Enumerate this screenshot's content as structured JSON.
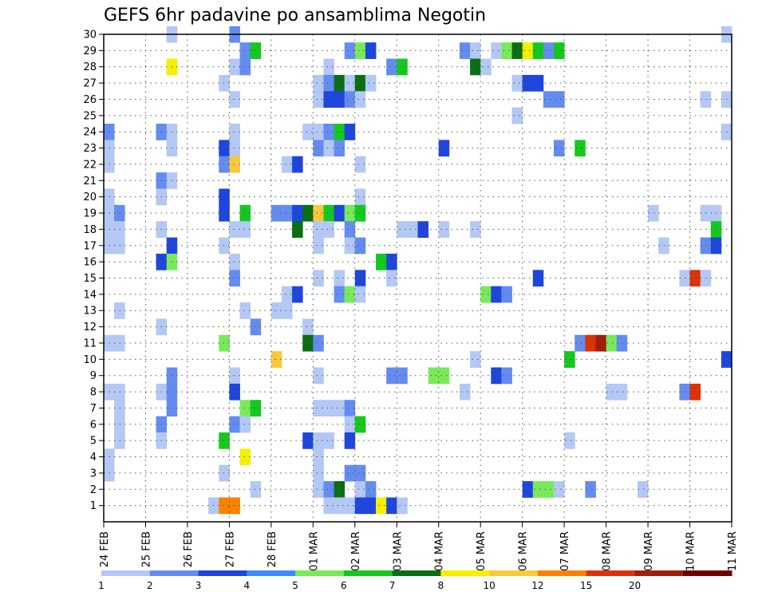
{
  "chart_data": {
    "type": "heatmap",
    "title": "GEFS 6hr padavine po ansamblima Negotin",
    "xlabel": "",
    "ylabel": "",
    "x_ticks": [
      "24 FEB",
      "25 FEB",
      "26 FEB",
      "27 FEB",
      "28 FEB",
      "01 MAR",
      "02 MAR",
      "03 MAR",
      "04 MAR",
      "05 MAR",
      "06 MAR",
      "07 MAR",
      "08 MAR",
      "09 MAR",
      "10 MAR",
      "11 MAR"
    ],
    "y_ticks": [
      1,
      2,
      3,
      4,
      5,
      6,
      7,
      8,
      9,
      10,
      11,
      12,
      13,
      14,
      15,
      16,
      17,
      18,
      19,
      20,
      21,
      22,
      23,
      24,
      25,
      26,
      27,
      28,
      29,
      30
    ],
    "x_range": [
      0,
      60
    ],
    "y_range": [
      0,
      30
    ],
    "time_steps_per_day": 4,
    "grid": true,
    "colorbar": {
      "placement": "bottom",
      "levels": [
        "1",
        "2",
        "3",
        "4",
        "5",
        "6",
        "7",
        "8",
        "10",
        "12",
        "15",
        "20"
      ],
      "colors": [
        "#b4c8f5",
        "#648cf0",
        "#1e46dc",
        "#3c8cff",
        "#78ea5a",
        "#14c81e",
        "#0a6e14",
        "#f5f000",
        "#fac83c",
        "#fa8200",
        "#dc320a",
        "#a01e0a",
        "#6e0000"
      ]
    },
    "cells": [
      [
        6,
        30,
        0
      ],
      [
        12,
        30,
        1
      ],
      [
        59,
        30,
        0
      ],
      [
        13,
        29,
        1
      ],
      [
        14,
        29,
        5
      ],
      [
        23,
        29,
        1
      ],
      [
        24,
        29,
        4
      ],
      [
        25,
        29,
        2
      ],
      [
        34,
        29,
        1
      ],
      [
        35,
        29,
        0
      ],
      [
        37,
        29,
        0
      ],
      [
        38,
        29,
        4
      ],
      [
        39,
        29,
        6
      ],
      [
        40,
        29,
        7
      ],
      [
        41,
        29,
        5
      ],
      [
        42,
        29,
        1
      ],
      [
        43,
        29,
        5
      ],
      [
        6,
        28,
        7
      ],
      [
        12,
        28,
        0
      ],
      [
        13,
        28,
        1
      ],
      [
        21,
        28,
        0
      ],
      [
        27,
        28,
        1
      ],
      [
        28,
        28,
        5
      ],
      [
        35,
        28,
        6
      ],
      [
        36,
        28,
        0
      ],
      [
        11,
        27,
        0
      ],
      [
        20,
        27,
        0
      ],
      [
        21,
        27,
        1
      ],
      [
        22,
        27,
        6
      ],
      [
        23,
        27,
        0
      ],
      [
        24,
        27,
        6
      ],
      [
        25,
        27,
        0
      ],
      [
        39,
        27,
        0
      ],
      [
        40,
        27,
        2
      ],
      [
        41,
        27,
        2
      ],
      [
        12,
        26,
        0
      ],
      [
        20,
        26,
        0
      ],
      [
        21,
        26,
        2
      ],
      [
        22,
        26,
        2
      ],
      [
        23,
        26,
        1
      ],
      [
        24,
        26,
        0
      ],
      [
        42,
        26,
        1
      ],
      [
        43,
        26,
        1
      ],
      [
        57,
        26,
        0
      ],
      [
        59,
        26,
        0
      ],
      [
        39,
        25,
        0
      ],
      [
        0,
        24,
        1
      ],
      [
        5,
        24,
        1
      ],
      [
        6,
        24,
        0
      ],
      [
        12,
        24,
        0
      ],
      [
        19,
        24,
        0
      ],
      [
        20,
        24,
        0
      ],
      [
        21,
        24,
        1
      ],
      [
        22,
        24,
        5
      ],
      [
        23,
        24,
        2
      ],
      [
        59,
        24,
        0
      ],
      [
        0,
        23,
        0
      ],
      [
        6,
        23,
        0
      ],
      [
        11,
        23,
        2
      ],
      [
        12,
        23,
        0
      ],
      [
        20,
        23,
        1
      ],
      [
        21,
        23,
        0
      ],
      [
        22,
        23,
        1
      ],
      [
        32,
        23,
        2
      ],
      [
        43,
        23,
        1
      ],
      [
        45,
        23,
        5
      ],
      [
        0,
        22,
        0
      ],
      [
        11,
        22,
        1
      ],
      [
        12,
        22,
        8
      ],
      [
        17,
        22,
        0
      ],
      [
        18,
        22,
        2
      ],
      [
        24,
        22,
        0
      ],
      [
        5,
        21,
        1
      ],
      [
        6,
        21,
        0
      ],
      [
        0,
        20,
        0
      ],
      [
        5,
        20,
        0
      ],
      [
        11,
        20,
        2
      ],
      [
        24,
        20,
        0
      ],
      [
        0,
        19,
        0
      ],
      [
        1,
        19,
        1
      ],
      [
        11,
        19,
        2
      ],
      [
        13,
        19,
        5
      ],
      [
        16,
        19,
        1
      ],
      [
        17,
        19,
        1
      ],
      [
        18,
        19,
        2
      ],
      [
        19,
        19,
        6
      ],
      [
        20,
        19,
        8
      ],
      [
        21,
        19,
        5
      ],
      [
        22,
        19,
        2
      ],
      [
        23,
        19,
        4
      ],
      [
        24,
        19,
        5
      ],
      [
        52,
        19,
        0
      ],
      [
        57,
        19,
        0
      ],
      [
        58,
        19,
        0
      ],
      [
        0,
        18,
        0
      ],
      [
        1,
        18,
        0
      ],
      [
        5,
        18,
        0
      ],
      [
        12,
        18,
        0
      ],
      [
        13,
        18,
        0
      ],
      [
        18,
        18,
        6
      ],
      [
        20,
        18,
        0
      ],
      [
        21,
        18,
        0
      ],
      [
        23,
        18,
        1
      ],
      [
        28,
        18,
        0
      ],
      [
        29,
        18,
        0
      ],
      [
        30,
        18,
        2
      ],
      [
        32,
        18,
        0
      ],
      [
        35,
        18,
        0
      ],
      [
        58,
        18,
        5
      ],
      [
        0,
        17,
        0
      ],
      [
        1,
        17,
        0
      ],
      [
        6,
        17,
        2
      ],
      [
        11,
        17,
        0
      ],
      [
        20,
        17,
        0
      ],
      [
        23,
        17,
        0
      ],
      [
        24,
        17,
        1
      ],
      [
        53,
        17,
        0
      ],
      [
        57,
        17,
        1
      ],
      [
        58,
        17,
        2
      ],
      [
        5,
        16,
        2
      ],
      [
        6,
        16,
        4
      ],
      [
        12,
        16,
        0
      ],
      [
        26,
        16,
        5
      ],
      [
        27,
        16,
        2
      ],
      [
        12,
        15,
        1
      ],
      [
        20,
        15,
        0
      ],
      [
        22,
        15,
        0
      ],
      [
        24,
        15,
        2
      ],
      [
        27,
        15,
        0
      ],
      [
        41,
        15,
        2
      ],
      [
        55,
        15,
        0
      ],
      [
        56,
        15,
        10
      ],
      [
        57,
        15,
        0
      ],
      [
        17,
        14,
        0
      ],
      [
        18,
        14,
        2
      ],
      [
        22,
        14,
        1
      ],
      [
        23,
        14,
        4
      ],
      [
        24,
        14,
        0
      ],
      [
        36,
        14,
        4
      ],
      [
        37,
        14,
        2
      ],
      [
        38,
        14,
        1
      ],
      [
        1,
        13,
        0
      ],
      [
        13,
        13,
        0
      ],
      [
        16,
        13,
        0
      ],
      [
        17,
        13,
        0
      ],
      [
        5,
        12,
        0
      ],
      [
        14,
        12,
        1
      ],
      [
        19,
        12,
        0
      ],
      [
        0,
        11,
        0
      ],
      [
        1,
        11,
        0
      ],
      [
        11,
        11,
        4
      ],
      [
        19,
        11,
        6
      ],
      [
        20,
        11,
        1
      ],
      [
        45,
        11,
        1
      ],
      [
        46,
        11,
        10
      ],
      [
        47,
        11,
        11
      ],
      [
        48,
        11,
        4
      ],
      [
        49,
        11,
        1
      ],
      [
        16,
        10,
        8
      ],
      [
        35,
        10,
        0
      ],
      [
        44,
        10,
        5
      ],
      [
        59,
        10,
        2
      ],
      [
        6,
        9,
        1
      ],
      [
        12,
        9,
        0
      ],
      [
        20,
        9,
        0
      ],
      [
        27,
        9,
        1
      ],
      [
        28,
        9,
        1
      ],
      [
        31,
        9,
        4
      ],
      [
        32,
        9,
        4
      ],
      [
        37,
        9,
        2
      ],
      [
        38,
        9,
        1
      ],
      [
        0,
        8,
        0
      ],
      [
        1,
        8,
        0
      ],
      [
        5,
        8,
        0
      ],
      [
        6,
        8,
        1
      ],
      [
        12,
        8,
        2
      ],
      [
        34,
        8,
        0
      ],
      [
        48,
        8,
        0
      ],
      [
        49,
        8,
        0
      ],
      [
        55,
        8,
        1
      ],
      [
        56,
        8,
        10
      ],
      [
        1,
        7,
        0
      ],
      [
        6,
        7,
        1
      ],
      [
        13,
        7,
        4
      ],
      [
        14,
        7,
        5
      ],
      [
        20,
        7,
        0
      ],
      [
        21,
        7,
        0
      ],
      [
        22,
        7,
        0
      ],
      [
        23,
        7,
        1
      ],
      [
        1,
        6,
        0
      ],
      [
        5,
        6,
        1
      ],
      [
        12,
        6,
        1
      ],
      [
        13,
        6,
        0
      ],
      [
        23,
        6,
        0
      ],
      [
        24,
        6,
        5
      ],
      [
        1,
        5,
        0
      ],
      [
        5,
        5,
        0
      ],
      [
        11,
        5,
        5
      ],
      [
        19,
        5,
        2
      ],
      [
        20,
        5,
        0
      ],
      [
        21,
        5,
        0
      ],
      [
        23,
        5,
        2
      ],
      [
        44,
        5,
        0
      ],
      [
        0,
        4,
        0
      ],
      [
        13,
        4,
        7
      ],
      [
        20,
        4,
        0
      ],
      [
        0,
        3,
        0
      ],
      [
        11,
        3,
        0
      ],
      [
        20,
        3,
        0
      ],
      [
        23,
        3,
        1
      ],
      [
        24,
        3,
        1
      ],
      [
        14,
        2,
        0
      ],
      [
        20,
        2,
        0
      ],
      [
        21,
        2,
        1
      ],
      [
        22,
        2,
        6
      ],
      [
        24,
        2,
        0
      ],
      [
        25,
        2,
        1
      ],
      [
        40,
        2,
        2
      ],
      [
        41,
        2,
        4
      ],
      [
        42,
        2,
        4
      ],
      [
        43,
        2,
        0
      ],
      [
        46,
        2,
        1
      ],
      [
        51,
        2,
        0
      ],
      [
        10,
        1,
        0
      ],
      [
        11,
        1,
        9
      ],
      [
        12,
        1,
        9
      ],
      [
        21,
        1,
        0
      ],
      [
        22,
        1,
        0
      ],
      [
        23,
        1,
        0
      ],
      [
        24,
        1,
        2
      ],
      [
        25,
        1,
        2
      ],
      [
        26,
        1,
        7
      ],
      [
        27,
        1,
        2
      ],
      [
        28,
        1,
        0
      ]
    ]
  }
}
